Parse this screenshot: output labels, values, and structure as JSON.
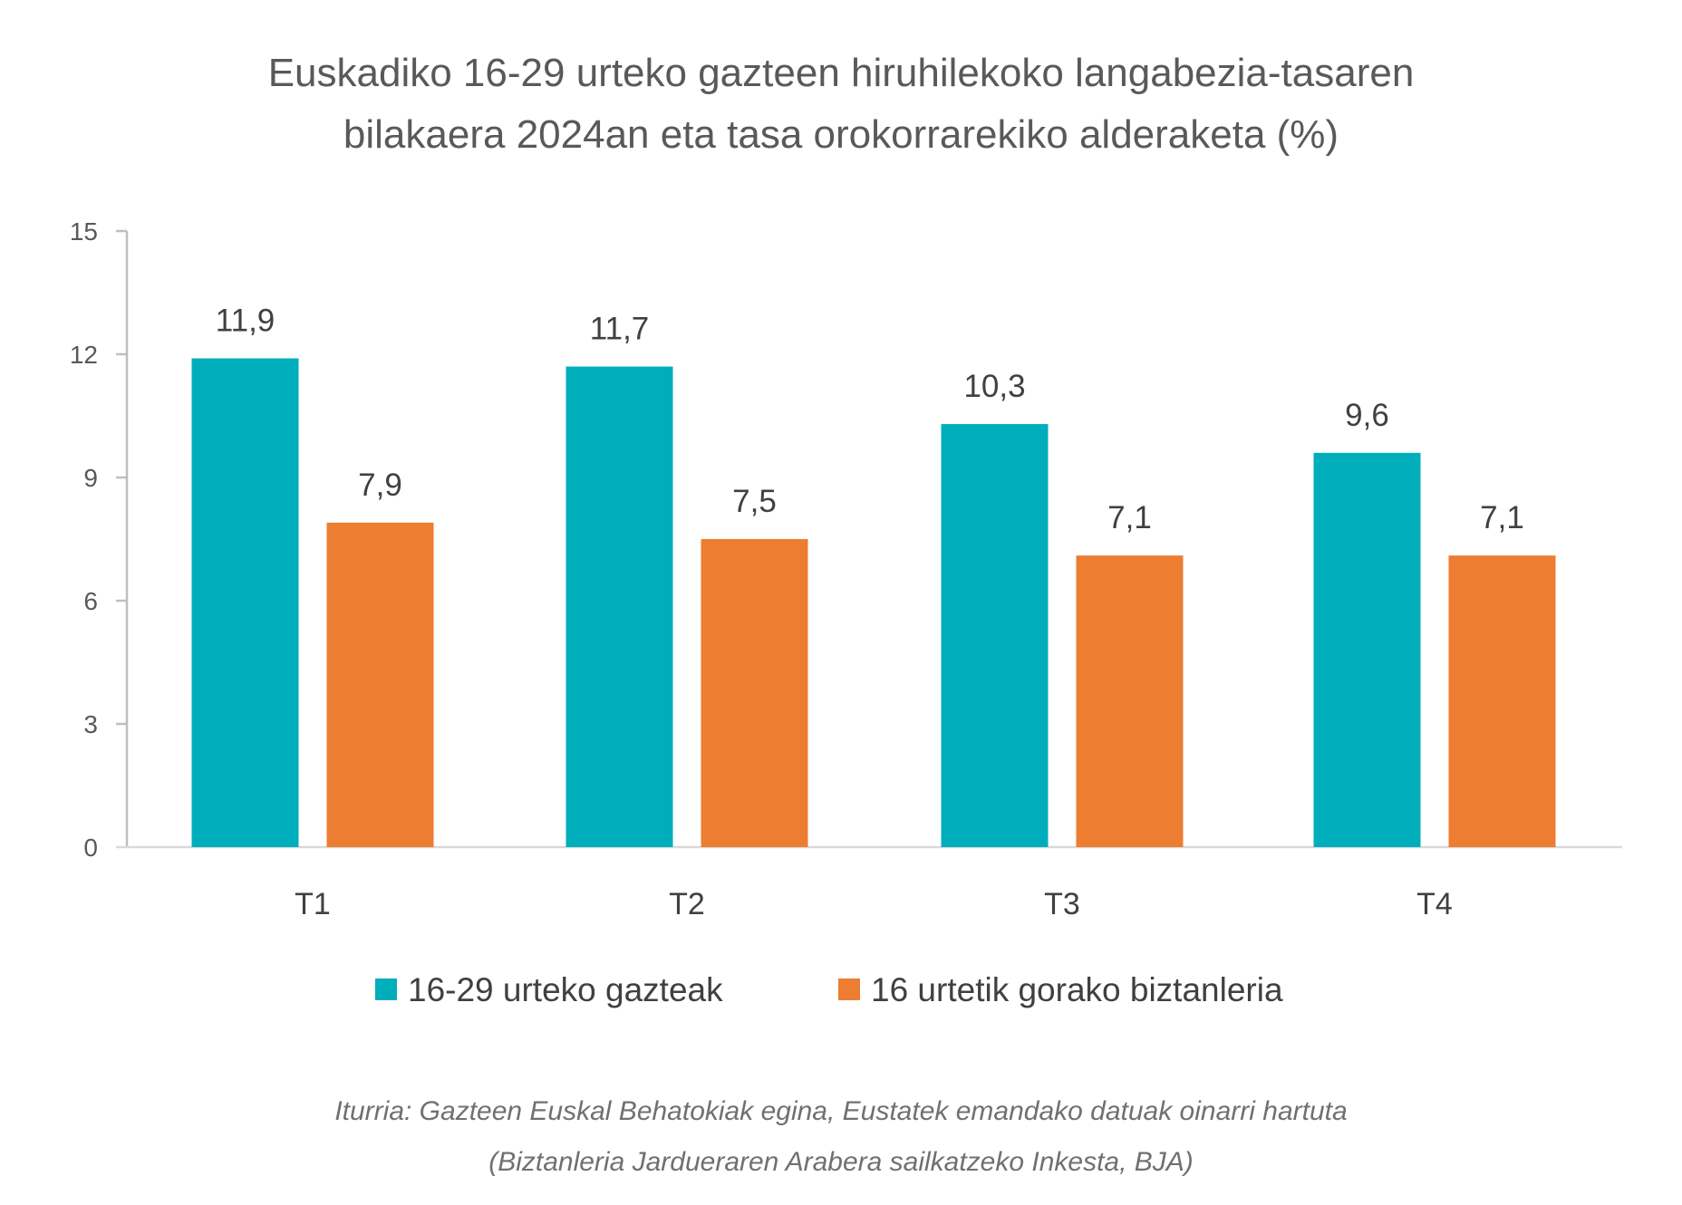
{
  "chart_data": {
    "type": "bar",
    "title": [
      "Euskadiko 16-29 urteko gazteen hiruhilekoko langabezia-tasaren",
      "bilakaera 2024an eta tasa orokorrarekiko alderaketa (%)"
    ],
    "categories": [
      "T1",
      "T2",
      "T3",
      "T4"
    ],
    "series": [
      {
        "name": "16-29 urteko gazteak",
        "color": "#00AEBB",
        "values": [
          11.9,
          11.7,
          10.3,
          9.6
        ],
        "labels": [
          "11,9",
          "11,7",
          "10,3",
          "9,6"
        ]
      },
      {
        "name": "16 urtetik gorako biztanleria",
        "color": "#ED7D31",
        "values": [
          7.9,
          7.5,
          7.1,
          7.1
        ],
        "labels": [
          "7,9",
          "7,5",
          "7,1",
          "7,1"
        ]
      }
    ],
    "ylim": [
      0,
      15
    ],
    "yticks": [
      "0",
      "3",
      "6",
      "9",
      "12",
      "15"
    ],
    "xlabel": "",
    "ylabel": "",
    "legend": "bottom",
    "grid": false,
    "source": [
      "Iturria: Gazteen Euskal Behatokiak egina, Eustatek emandako datuak oinarri hartuta",
      "(Biztanleria Jardueraren Arabera sailkatzeko Inkesta, BJA)"
    ]
  }
}
